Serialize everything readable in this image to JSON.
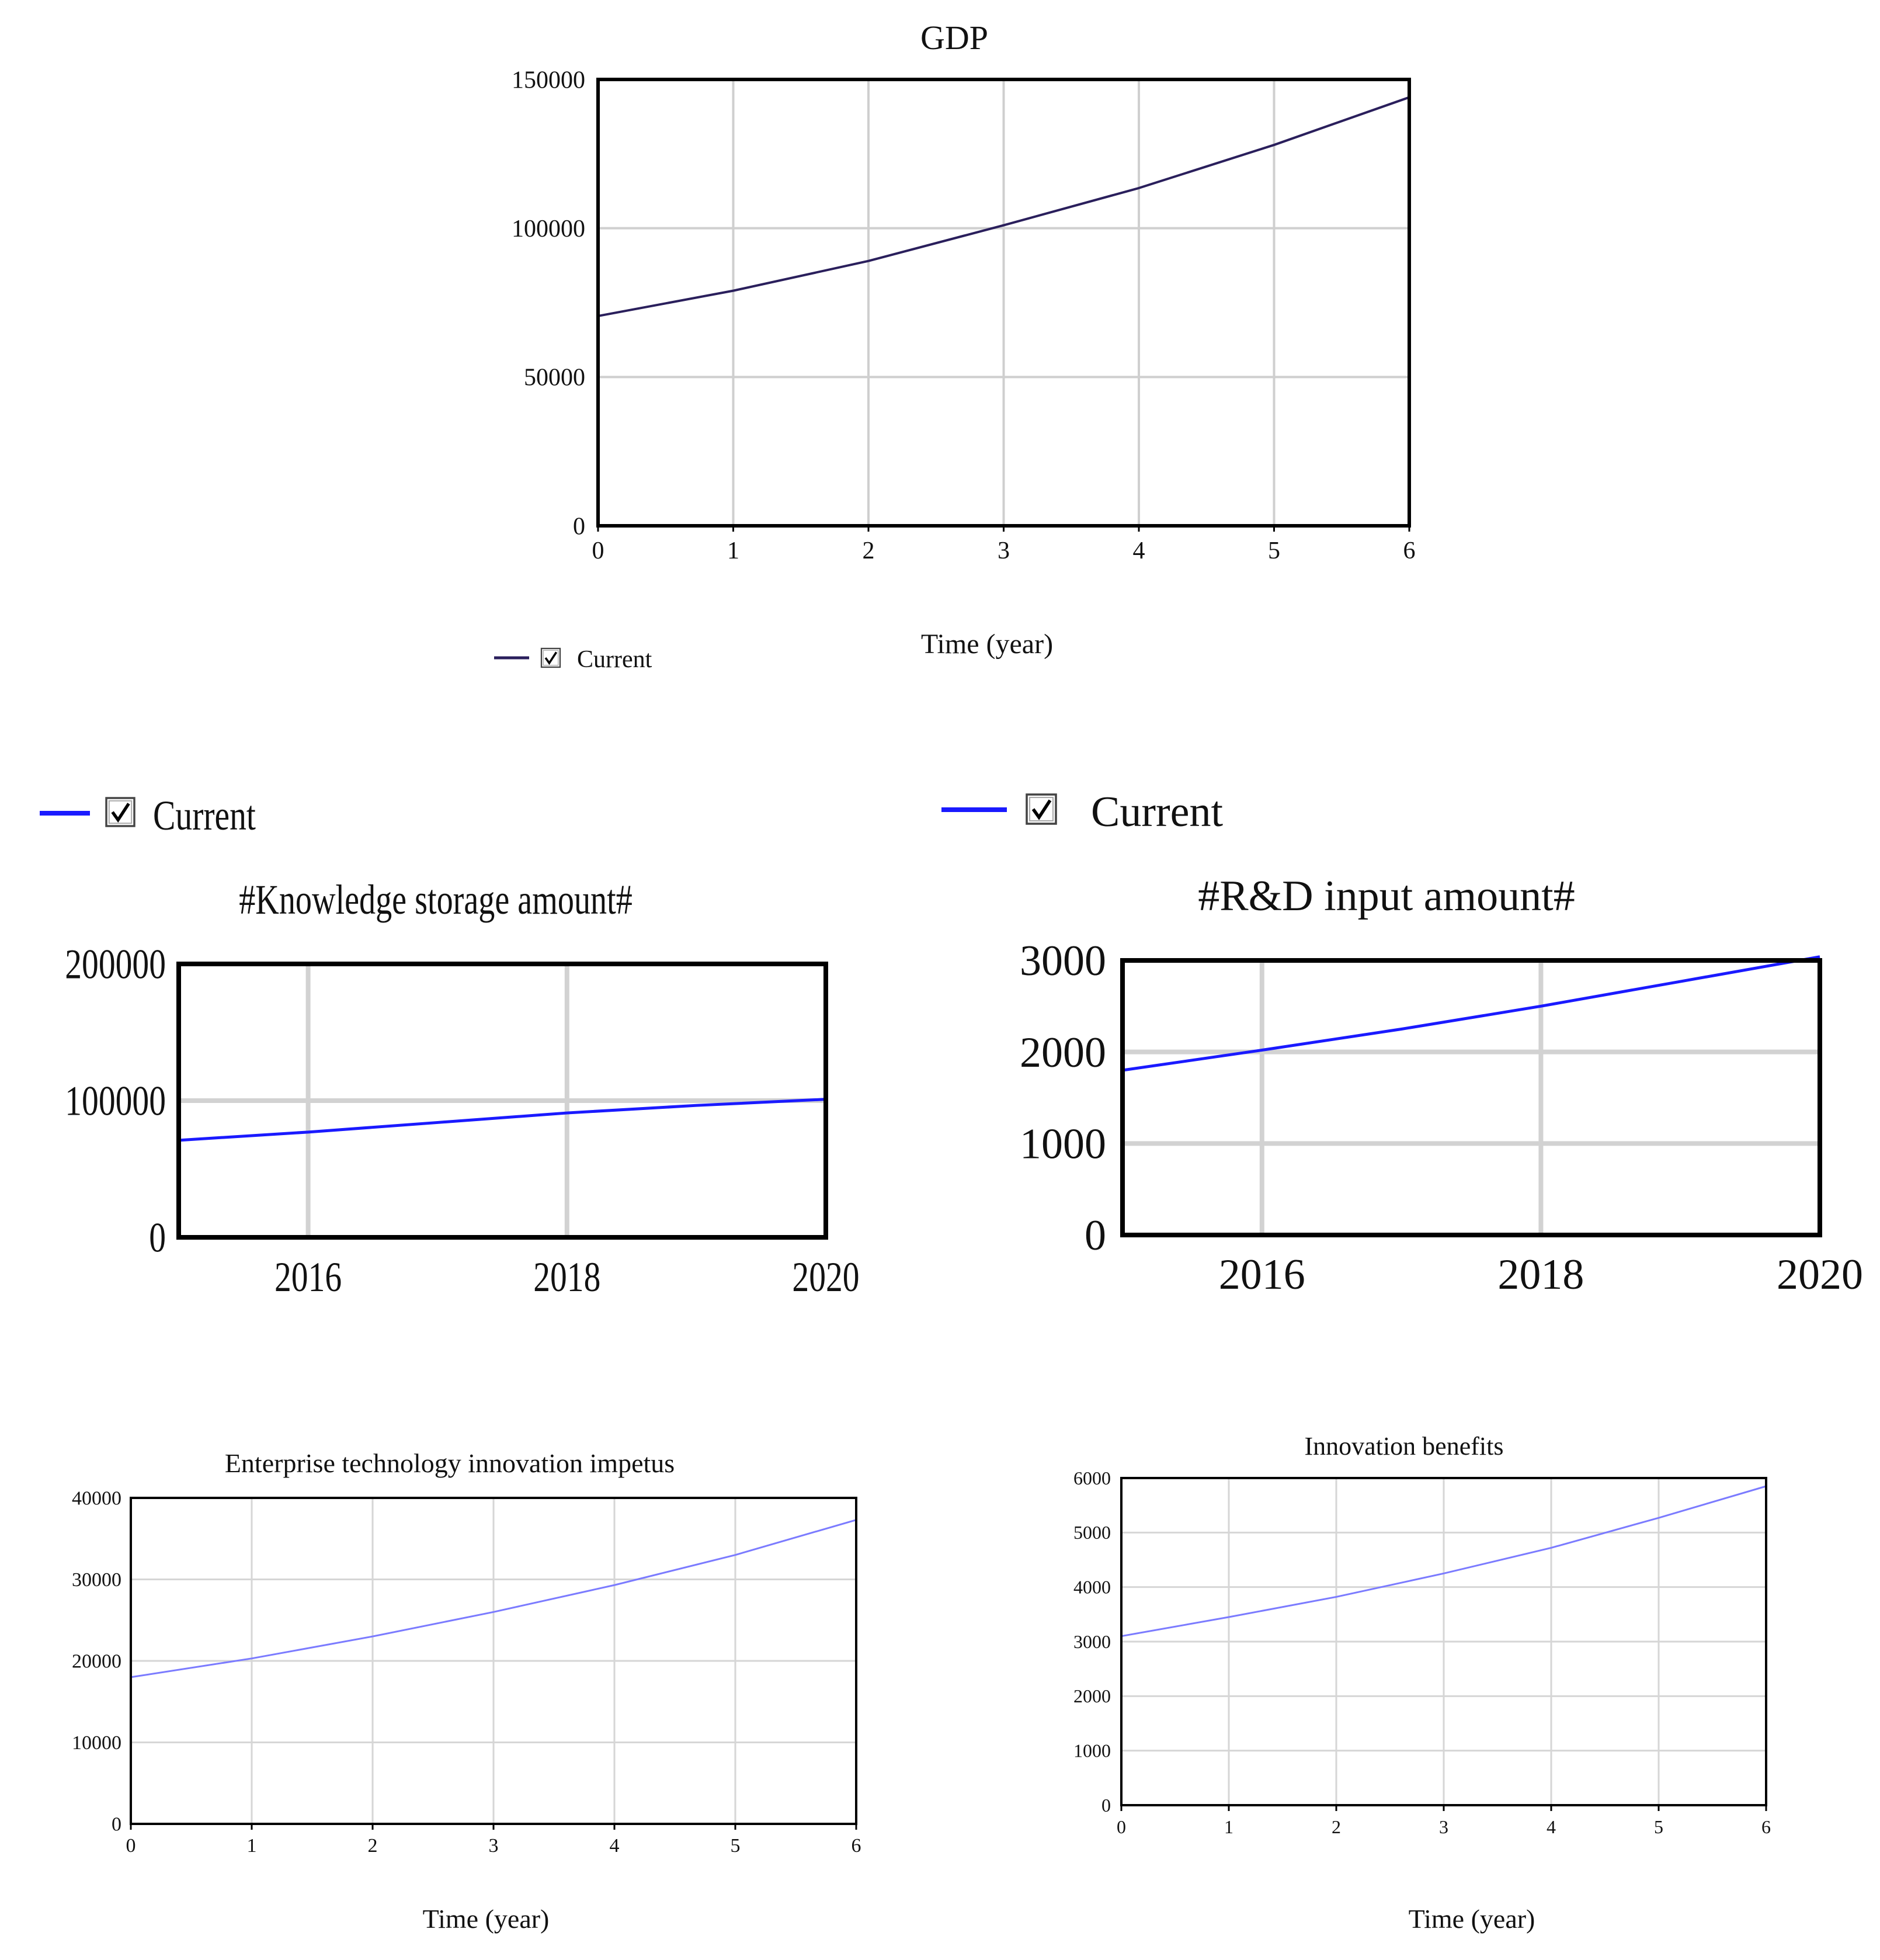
{
  "chart_data": [
    {
      "id": "gdp",
      "type": "line",
      "title": "GDP",
      "xlabel": "Time (year)",
      "ylabel": "",
      "x": [
        0,
        1,
        2,
        3,
        4,
        5,
        6
      ],
      "x_ticks": [
        "0",
        "1",
        "2",
        "3",
        "4",
        "5",
        "6"
      ],
      "y_ticks": [
        "0",
        "50000",
        "100000",
        "150000"
      ],
      "xlim": [
        0,
        6
      ],
      "ylim": [
        0,
        150000
      ],
      "grid": true,
      "legend": {
        "placement": "bottom-left",
        "checked": true
      },
      "series": [
        {
          "name": "Current",
          "color": "#2a1f5c",
          "values": [
            70500,
            79000,
            89000,
            101000,
            113500,
            128000,
            144000
          ]
        }
      ]
    },
    {
      "id": "knowledge",
      "type": "line",
      "title": "#Knowledge storage amount#",
      "xlabel": "",
      "ylabel": "",
      "x": [
        2015,
        2016,
        2017,
        2018,
        2019,
        2020
      ],
      "x_ticks": [
        "2016",
        "2018",
        "2020"
      ],
      "y_ticks": [
        "0",
        "100000",
        "200000"
      ],
      "xlim": [
        2015,
        2020
      ],
      "ylim": [
        0,
        200000
      ],
      "grid": true,
      "legend": {
        "placement": "top-left",
        "checked": true
      },
      "series": [
        {
          "name": "Current",
          "color": "#1a1aff",
          "values": [
            71000,
            77000,
            84000,
            91000,
            96500,
            101000
          ]
        }
      ]
    },
    {
      "id": "rd",
      "type": "line",
      "title": "#R&D input amount#",
      "xlabel": "",
      "ylabel": "",
      "x": [
        2015,
        2016,
        2017,
        2018,
        2019,
        2020
      ],
      "x_ticks": [
        "2016",
        "2018",
        "2020"
      ],
      "y_ticks": [
        "0",
        "1000",
        "2000",
        "3000"
      ],
      "xlim": [
        2015,
        2020
      ],
      "ylim": [
        0,
        3000
      ],
      "grid": true,
      "legend": {
        "placement": "top-left",
        "checked": true
      },
      "series": [
        {
          "name": "Current",
          "color": "#1a1aff",
          "values": [
            1800,
            2020,
            2250,
            2500,
            2770,
            3040
          ]
        }
      ]
    },
    {
      "id": "impetus",
      "type": "line",
      "title": "Enterprise technology innovation impetus",
      "xlabel": "Time (year)",
      "ylabel": "",
      "x": [
        0,
        1,
        2,
        3,
        4,
        5,
        6
      ],
      "x_ticks": [
        "0",
        "1",
        "2",
        "3",
        "4",
        "5",
        "6"
      ],
      "y_ticks": [
        "0",
        "10000",
        "20000",
        "30000",
        "40000"
      ],
      "xlim": [
        0,
        6
      ],
      "ylim": [
        0,
        40000
      ],
      "grid": true,
      "series": [
        {
          "color": "#7b7bff",
          "values": [
            18000,
            20300,
            23000,
            26000,
            29300,
            33000,
            37300
          ]
        }
      ]
    },
    {
      "id": "benefits",
      "type": "line",
      "title": "Innovation benefits",
      "xlabel": "Time (year)",
      "ylabel": "",
      "x": [
        0,
        1,
        2,
        3,
        4,
        5,
        6
      ],
      "x_ticks": [
        "0",
        "1",
        "2",
        "3",
        "4",
        "5",
        "6"
      ],
      "y_ticks": [
        "0",
        "1000",
        "2000",
        "3000",
        "4000",
        "5000",
        "6000"
      ],
      "xlim": [
        0,
        6
      ],
      "ylim": [
        0,
        6000
      ],
      "grid": true,
      "series": [
        {
          "color": "#7b7bff",
          "values": [
            3100,
            3450,
            3820,
            4250,
            4720,
            5270,
            5850
          ]
        }
      ]
    }
  ]
}
